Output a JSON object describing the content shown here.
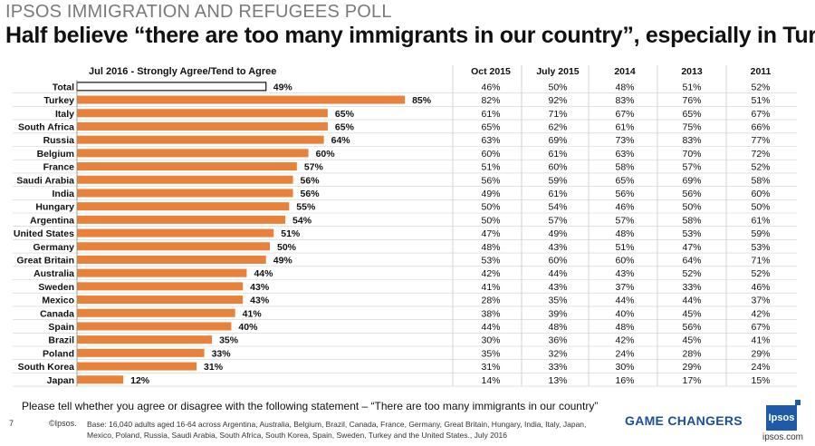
{
  "header": {
    "title": "IPSOS IMMIGRATION AND REFUGEES POLL",
    "subtitle": "Half believe “there are too many immigrants in our country”, especially in Turkey"
  },
  "chart_data": {
    "type": "bar",
    "orientation": "horizontal",
    "series_label": "Jul 2016 - Strongly Agree/Tend to Agree",
    "categories": [
      "Total",
      "Turkey",
      "Italy",
      "South Africa",
      "Russia",
      "Belgium",
      "France",
      "Saudi Arabia",
      "India",
      "Hungary",
      "Argentina",
      "United States",
      "Germany",
      "Great Britain",
      "Australia",
      "Sweden",
      "Mexico",
      "Canada",
      "Spain",
      "Brazil",
      "Poland",
      "South Korea",
      "Japan"
    ],
    "values": [
      49,
      85,
      65,
      65,
      64,
      60,
      57,
      56,
      56,
      55,
      54,
      51,
      50,
      49,
      44,
      43,
      43,
      41,
      40,
      35,
      33,
      31,
      12
    ],
    "value_suffix": "%",
    "xlim": [
      0,
      100
    ],
    "highlight_first": true,
    "bar_color": "#e8823a",
    "total_bar_color": "#ffffff",
    "table": {
      "columns": [
        "Oct 2015",
        "July 2015",
        "2014",
        "2013",
        "2011"
      ],
      "rows": [
        [
          "46%",
          "50%",
          "48%",
          "51%",
          "52%"
        ],
        [
          "82%",
          "92%",
          "83%",
          "76%",
          "51%"
        ],
        [
          "61%",
          "71%",
          "67%",
          "65%",
          "67%"
        ],
        [
          "65%",
          "62%",
          "61%",
          "75%",
          "66%"
        ],
        [
          "63%",
          "69%",
          "73%",
          "83%",
          "77%"
        ],
        [
          "60%",
          "61%",
          "63%",
          "70%",
          "72%"
        ],
        [
          "51%",
          "60%",
          "58%",
          "57%",
          "52%"
        ],
        [
          "56%",
          "59%",
          "65%",
          "69%",
          "58%"
        ],
        [
          "49%",
          "61%",
          "56%",
          "56%",
          "60%"
        ],
        [
          "50%",
          "54%",
          "46%",
          "50%",
          "50%"
        ],
        [
          "50%",
          "57%",
          "57%",
          "58%",
          "61%"
        ],
        [
          "47%",
          "49%",
          "48%",
          "53%",
          "59%"
        ],
        [
          "48%",
          "43%",
          "51%",
          "47%",
          "53%"
        ],
        [
          "53%",
          "60%",
          "60%",
          "64%",
          "71%"
        ],
        [
          "42%",
          "44%",
          "43%",
          "52%",
          "52%"
        ],
        [
          "41%",
          "43%",
          "37%",
          "33%",
          "46%"
        ],
        [
          "28%",
          "35%",
          "44%",
          "44%",
          "37%"
        ],
        [
          "38%",
          "39%",
          "40%",
          "45%",
          "42%"
        ],
        [
          "44%",
          "48%",
          "48%",
          "56%",
          "67%"
        ],
        [
          "30%",
          "36%",
          "42%",
          "45%",
          "41%"
        ],
        [
          "35%",
          "32%",
          "24%",
          "28%",
          "29%"
        ],
        [
          "31%",
          "33%",
          "30%",
          "29%",
          "24%"
        ],
        [
          "14%",
          "13%",
          "16%",
          "17%",
          "15%"
        ]
      ]
    }
  },
  "footer": {
    "question": "Please tell whether you agree or disagree with the following statement – “There are too many immigrants in our country”",
    "page_number": "7",
    "copyright": "©Ipsos.",
    "base_note": "Base: 16,040 adults aged 16-64 across  Argentina, Australia, Belgium, Brazil, Canada, France, Germany, Great Britain, Hungary, India, Italy, Japan, Mexico, Poland, Russia, Saudi Arabia, South Africa, South Korea, Spain, Sweden, Turkey and the United States., July 2016",
    "tagline": "GAME CHANGERS",
    "logo_text": "Ipsos",
    "site": "ipsos.com"
  }
}
